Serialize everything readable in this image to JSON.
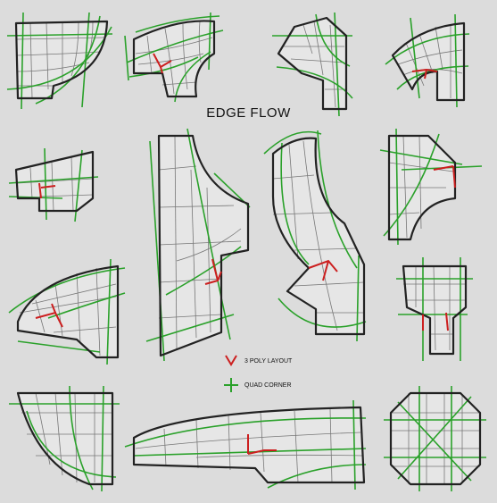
{
  "title": "EDGE FLOW",
  "legend": {
    "items": [
      {
        "label": "3 POLY LAYOUT",
        "icon": "three-poly-icon",
        "color": "#cc1f1f"
      },
      {
        "label": "QUAD CORNER",
        "icon": "quad-corner-icon",
        "color": "#2aa12a"
      }
    ]
  },
  "colors": {
    "background": "#dcdcdc",
    "outline": "#222222",
    "mesh": "#777777",
    "edge_flow": "#2aa12a",
    "pole": "#cc1f1f"
  }
}
